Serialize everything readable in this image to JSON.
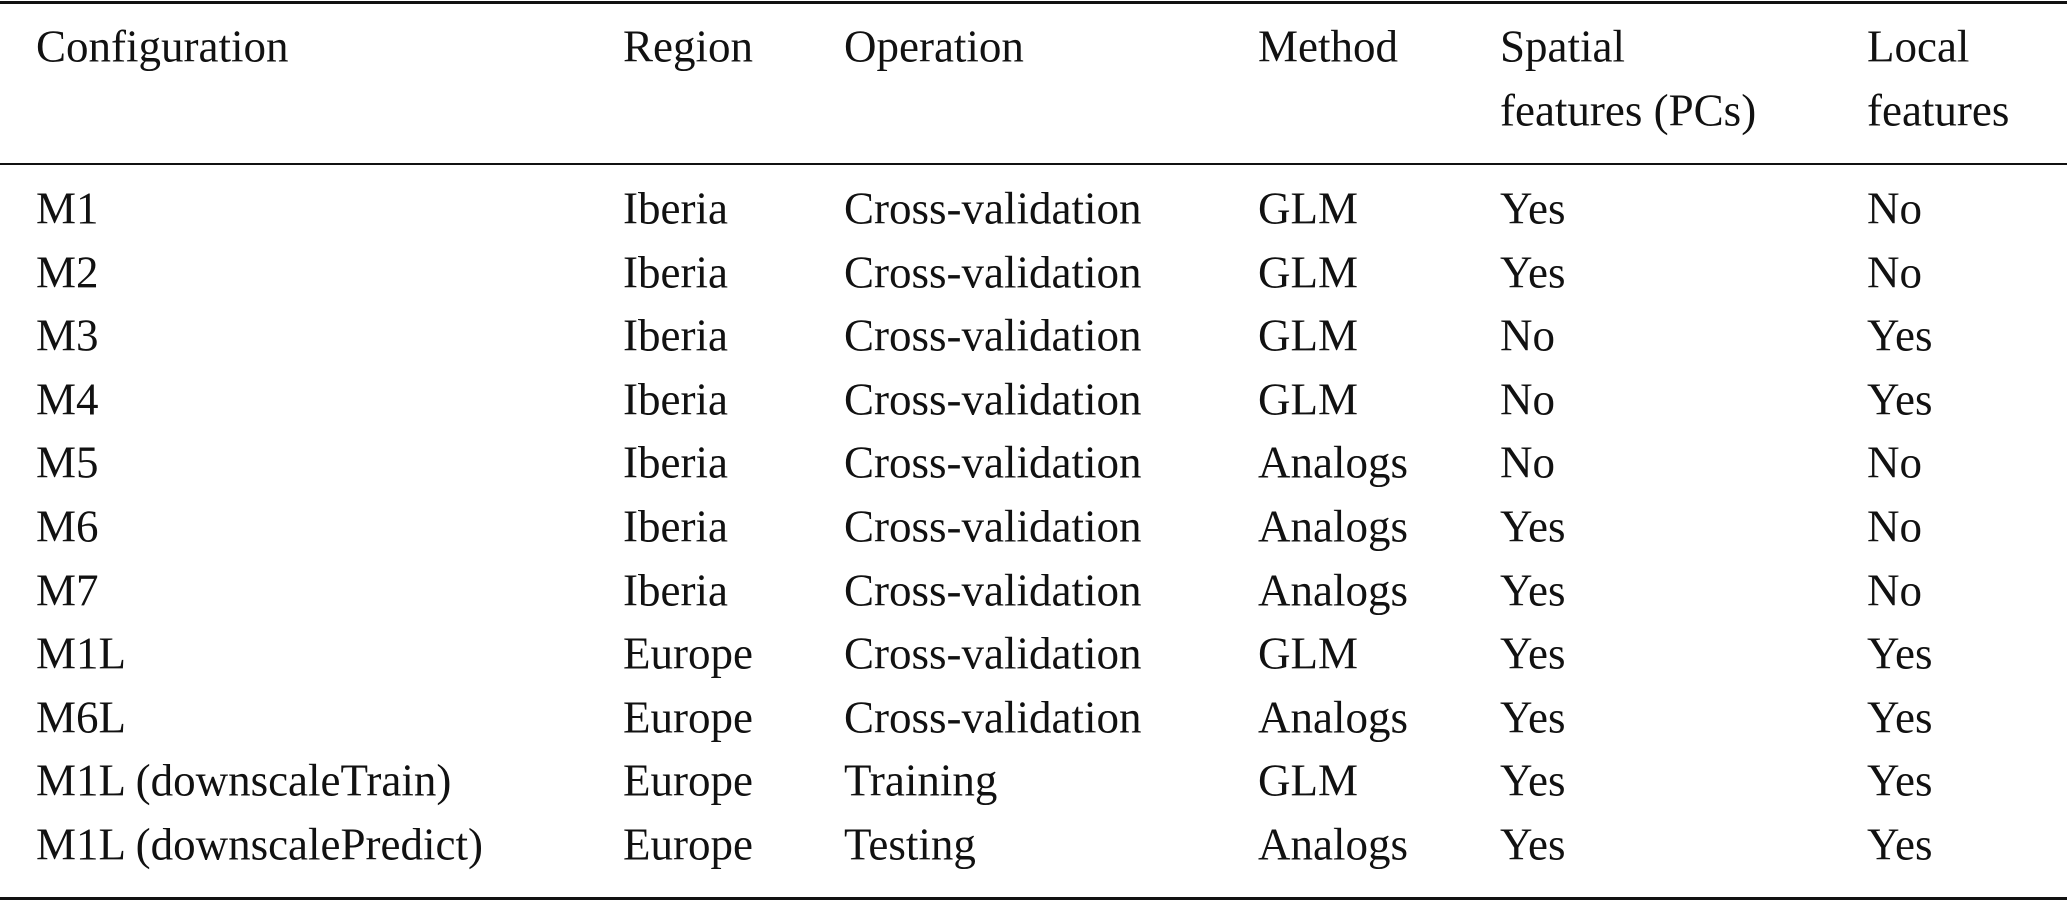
{
  "table": {
    "header": [
      [
        "Configuration"
      ],
      [
        "Region"
      ],
      [
        "Operation"
      ],
      [
        "Method"
      ],
      [
        "Spatial",
        "features (PCs)"
      ],
      [
        "Local",
        "features"
      ]
    ],
    "rows": [
      [
        "M1",
        "Iberia",
        "Cross-validation",
        "GLM",
        "Yes",
        "No"
      ],
      [
        "M2",
        "Iberia",
        "Cross-validation",
        "GLM",
        "Yes",
        "No"
      ],
      [
        "M3",
        "Iberia",
        "Cross-validation",
        "GLM",
        "No",
        "Yes"
      ],
      [
        "M4",
        "Iberia",
        "Cross-validation",
        "GLM",
        "No",
        "Yes"
      ],
      [
        "M5",
        "Iberia",
        "Cross-validation",
        "Analogs",
        "No",
        "No"
      ],
      [
        "M6",
        "Iberia",
        "Cross-validation",
        "Analogs",
        "Yes",
        "No"
      ],
      [
        "M7",
        "Iberia",
        "Cross-validation",
        "Analogs",
        "Yes",
        "No"
      ],
      [
        "M1L",
        "Europe",
        "Cross-validation",
        "GLM",
        "Yes",
        "Yes"
      ],
      [
        "M6L",
        "Europe",
        "Cross-validation",
        "Analogs",
        "Yes",
        "Yes"
      ],
      [
        "M1L (downscaleTrain)",
        "Europe",
        "Training",
        "GLM",
        "Yes",
        "Yes"
      ],
      [
        "M1L (downscalePredict)",
        "Europe",
        "Testing",
        "Analogs",
        "Yes",
        "Yes"
      ]
    ]
  }
}
